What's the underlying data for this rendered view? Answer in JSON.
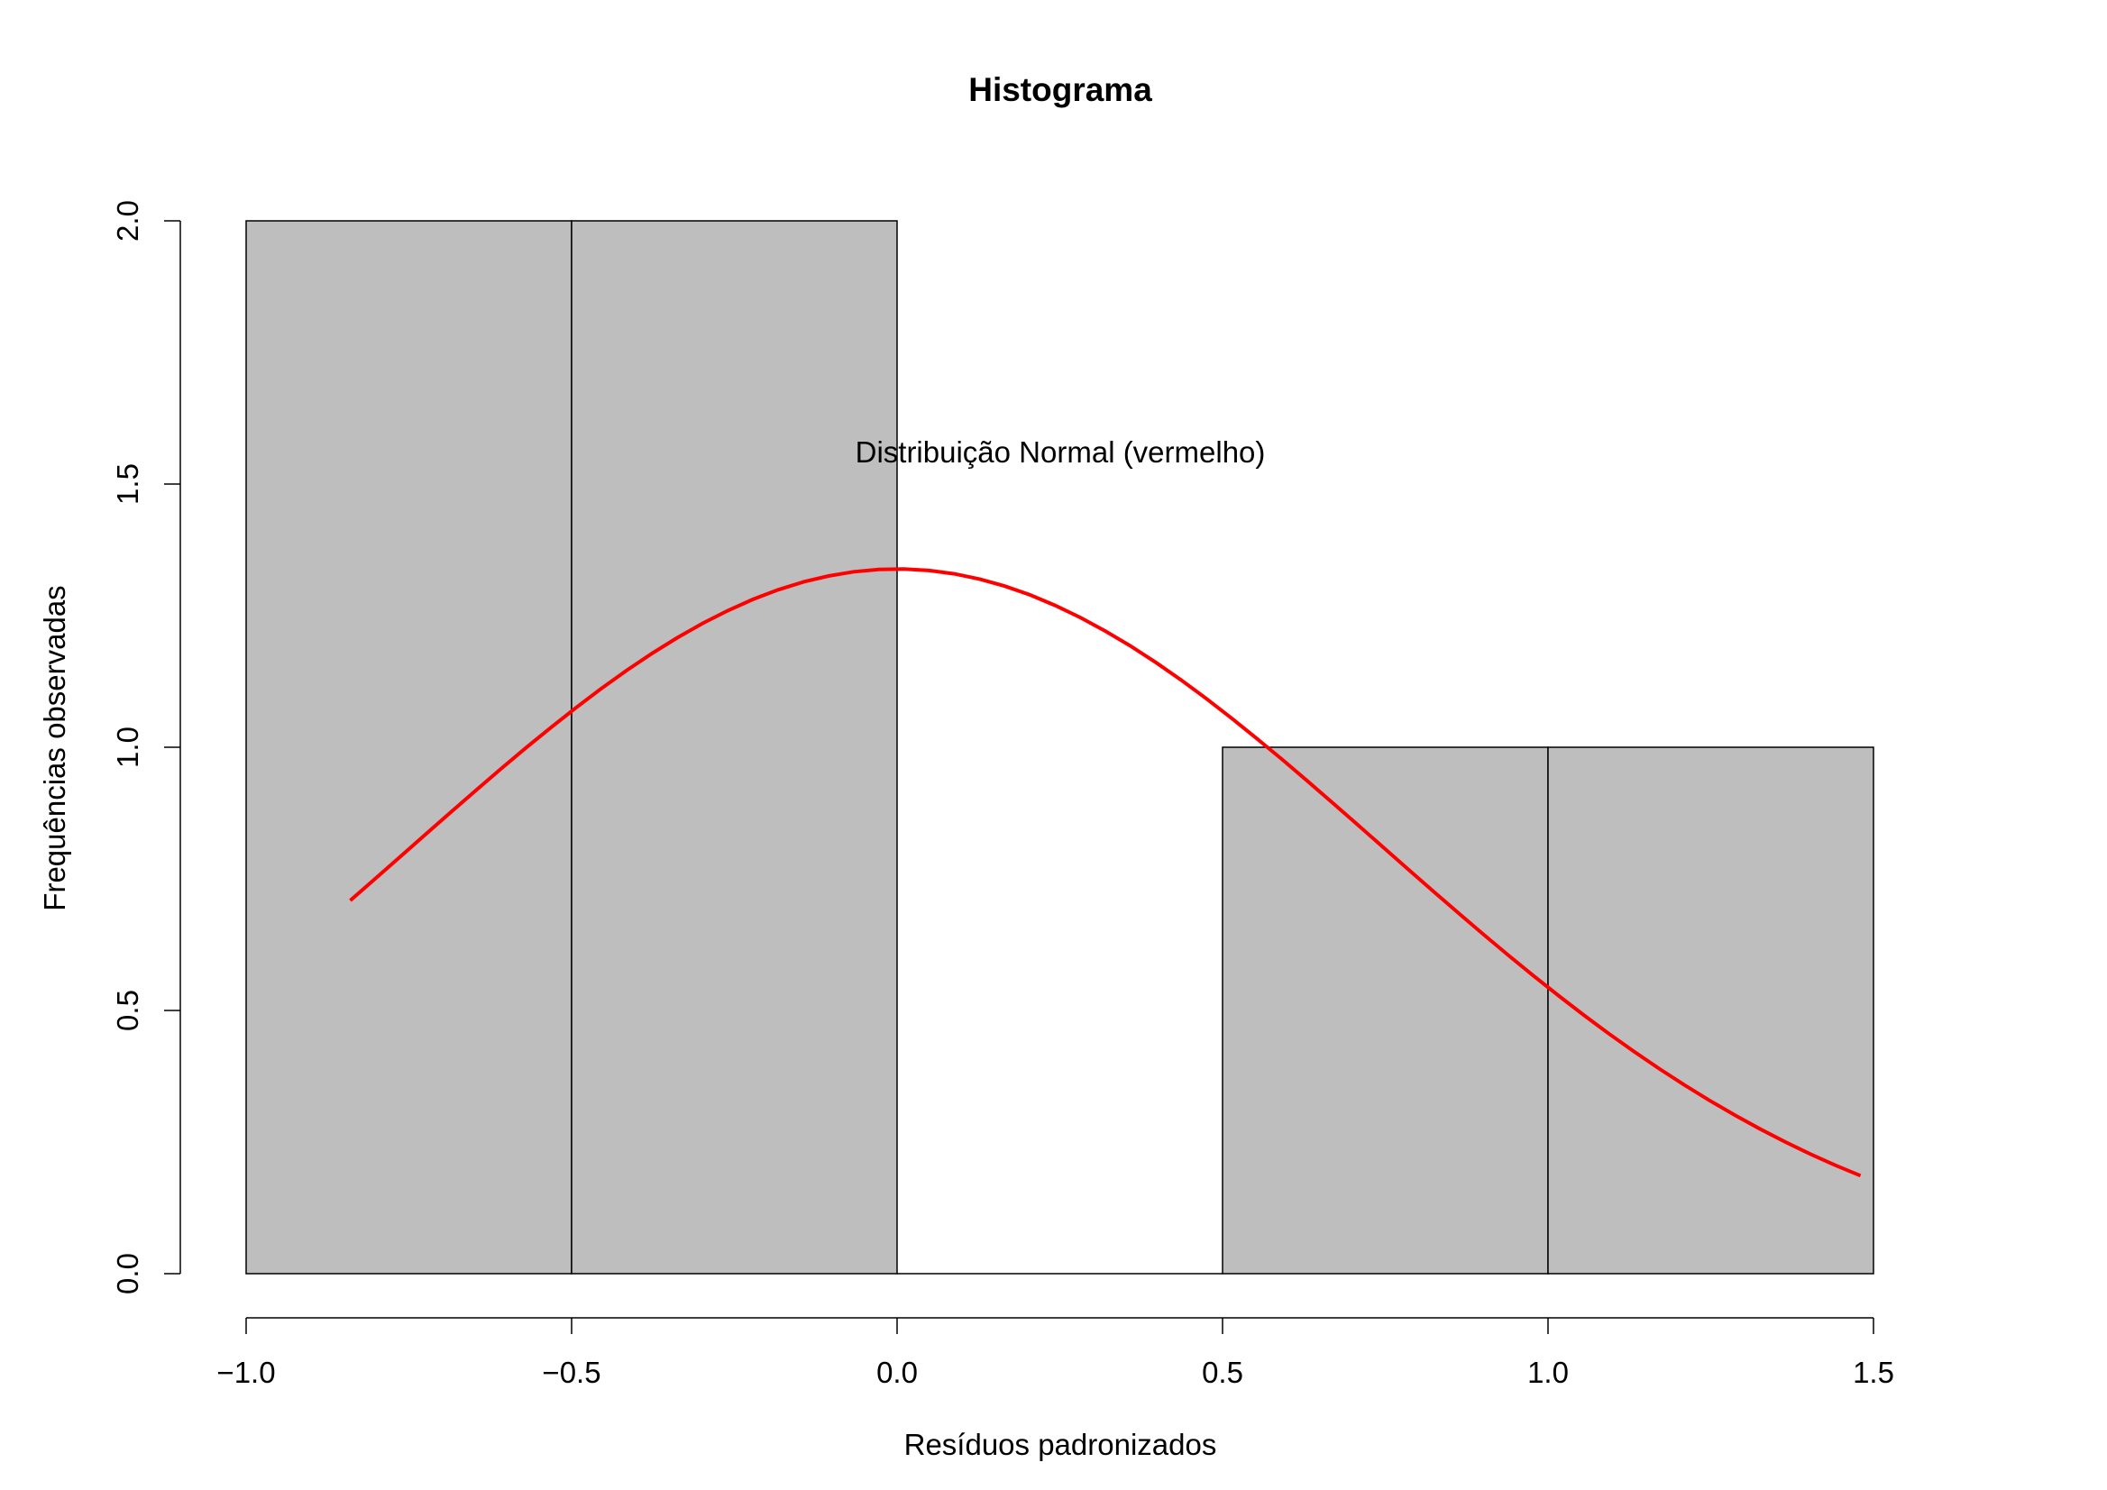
{
  "chart_data": {
    "type": "bar",
    "title": "Histograma",
    "xlabel": "Resíduos padronizados",
    "ylabel": "Frequências observadas",
    "annotation": "Distribuição Normal (vermelho)",
    "bins": [
      {
        "start": -1.0,
        "end": -0.5,
        "count": 2
      },
      {
        "start": -0.5,
        "end": 0.0,
        "count": 2
      },
      {
        "start": 0.0,
        "end": 0.5,
        "count": 0
      },
      {
        "start": 0.5,
        "end": 1.0,
        "count": 1
      },
      {
        "start": 1.0,
        "end": 1.5,
        "count": 1
      }
    ],
    "x_ticks": [
      -1.0,
      -0.5,
      0.0,
      0.5,
      1.0,
      1.5
    ],
    "x_tick_labels": [
      "−1.0",
      "−0.5",
      "0.0",
      "0.5",
      "1.0",
      "1.5"
    ],
    "y_ticks": [
      0.0,
      0.5,
      1.0,
      1.5,
      2.0
    ],
    "y_tick_labels": [
      "0.0",
      "0.5",
      "1.0",
      "1.5",
      "2.0"
    ],
    "xlim": [
      -1.0,
      1.5
    ],
    "ylim": [
      0,
      2.0
    ],
    "bar_color": "#bebebe",
    "curve": {
      "name": "Distribuição Normal",
      "color": "#ff0000",
      "x_range": [
        -0.84,
        1.48
      ],
      "mean": 0.0,
      "sd": 0.745,
      "scale": 2.5
    },
    "grid": false
  }
}
